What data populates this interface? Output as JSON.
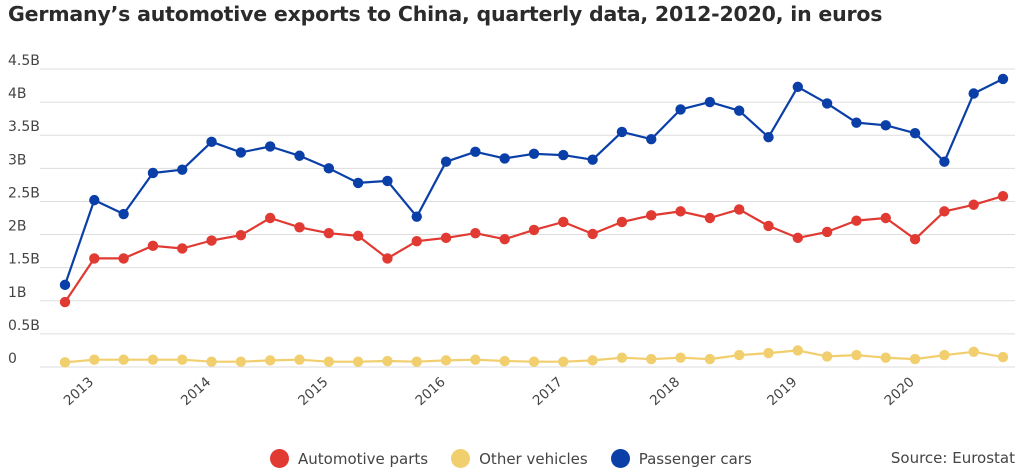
{
  "chart_data": {
    "type": "line",
    "title": "Germany’s automotive exports to China, quarterly data, 2012-2020, in euros",
    "ylim": [
      0,
      4.5
    ],
    "y_ticks": [
      0,
      0.5,
      1,
      1.5,
      2,
      2.5,
      3,
      3.5,
      4,
      4.5
    ],
    "y_tick_labels": [
      "0",
      "0.5B",
      "1B",
      "1.5B",
      "2B",
      "2.5B",
      "3B",
      "3.5B",
      "4B",
      "4.5B"
    ],
    "x_tick_labels": [
      "2013",
      "2014",
      "2015",
      "2016",
      "2017",
      "2018",
      "2019",
      "2020"
    ],
    "x_tick_index": [
      1,
      5,
      9,
      13,
      17,
      21,
      25,
      29
    ],
    "grid": true,
    "legend_position": "bottom",
    "series": [
      {
        "name": "Passenger cars",
        "color": "#0b3fa8",
        "values": [
          1.24,
          2.52,
          2.31,
          2.93,
          2.98,
          3.4,
          3.24,
          3.33,
          3.19,
          3.0,
          2.78,
          2.81,
          2.27,
          3.1,
          3.25,
          3.15,
          3.22,
          3.2,
          3.13,
          3.55,
          3.44,
          3.89,
          4.0,
          3.87,
          3.47,
          4.23,
          3.98,
          3.69,
          3.65,
          3.53,
          3.1,
          4.13,
          4.35
        ]
      },
      {
        "name": "Automotive parts",
        "color": "#e03a32",
        "values": [
          0.98,
          1.64,
          1.64,
          1.83,
          1.79,
          1.91,
          1.99,
          2.25,
          2.11,
          2.02,
          1.98,
          1.64,
          1.9,
          1.95,
          2.02,
          1.93,
          2.07,
          2.19,
          2.01,
          2.19,
          2.29,
          2.35,
          2.25,
          2.38,
          2.13,
          1.95,
          2.04,
          2.21,
          2.25,
          1.93,
          2.35,
          2.45,
          2.58
        ]
      },
      {
        "name": "Other vehicles",
        "color": "#f2cf6e",
        "values": [
          0.07,
          0.11,
          0.11,
          0.11,
          0.11,
          0.08,
          0.08,
          0.1,
          0.11,
          0.08,
          0.08,
          0.09,
          0.08,
          0.1,
          0.11,
          0.09,
          0.08,
          0.08,
          0.1,
          0.14,
          0.12,
          0.14,
          0.12,
          0.18,
          0.21,
          0.25,
          0.16,
          0.18,
          0.14,
          0.12,
          0.18,
          0.23,
          0.15
        ]
      }
    ],
    "legend": [
      {
        "name": "Automotive parts",
        "color": "#e03a32"
      },
      {
        "name": "Other vehicles",
        "color": "#f2cf6e"
      },
      {
        "name": "Passenger cars",
        "color": "#0b3fa8"
      }
    ]
  },
  "source": "Source: Eurostat"
}
